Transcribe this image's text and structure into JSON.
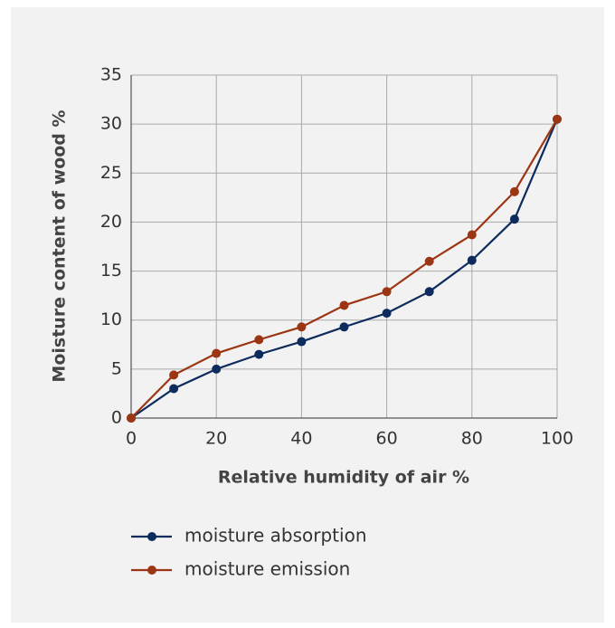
{
  "chart_data": {
    "type": "line",
    "xlabel": "Relative humidity of air %",
    "ylabel": "Moisture content of wood %",
    "x": [
      0,
      10,
      20,
      30,
      40,
      50,
      60,
      70,
      80,
      90,
      100
    ],
    "series": [
      {
        "name": "moisture absorption",
        "color": "#0e2b5e",
        "values": [
          0,
          3.0,
          5.0,
          6.5,
          7.8,
          9.3,
          10.7,
          12.9,
          16.1,
          20.3,
          30.5
        ]
      },
      {
        "name": "moisture emission",
        "color": "#9c3513",
        "values": [
          0,
          4.4,
          6.6,
          8.0,
          9.3,
          11.5,
          12.9,
          16.0,
          18.7,
          23.1,
          30.5
        ]
      }
    ],
    "xlim": [
      0,
      100
    ],
    "xticks": [
      0,
      20,
      40,
      60,
      80,
      100
    ],
    "ylim": [
      0,
      35
    ],
    "yticks": [
      0,
      5,
      10,
      15,
      20,
      25,
      30,
      35
    ],
    "grid": true,
    "legend": "bottom-left"
  }
}
